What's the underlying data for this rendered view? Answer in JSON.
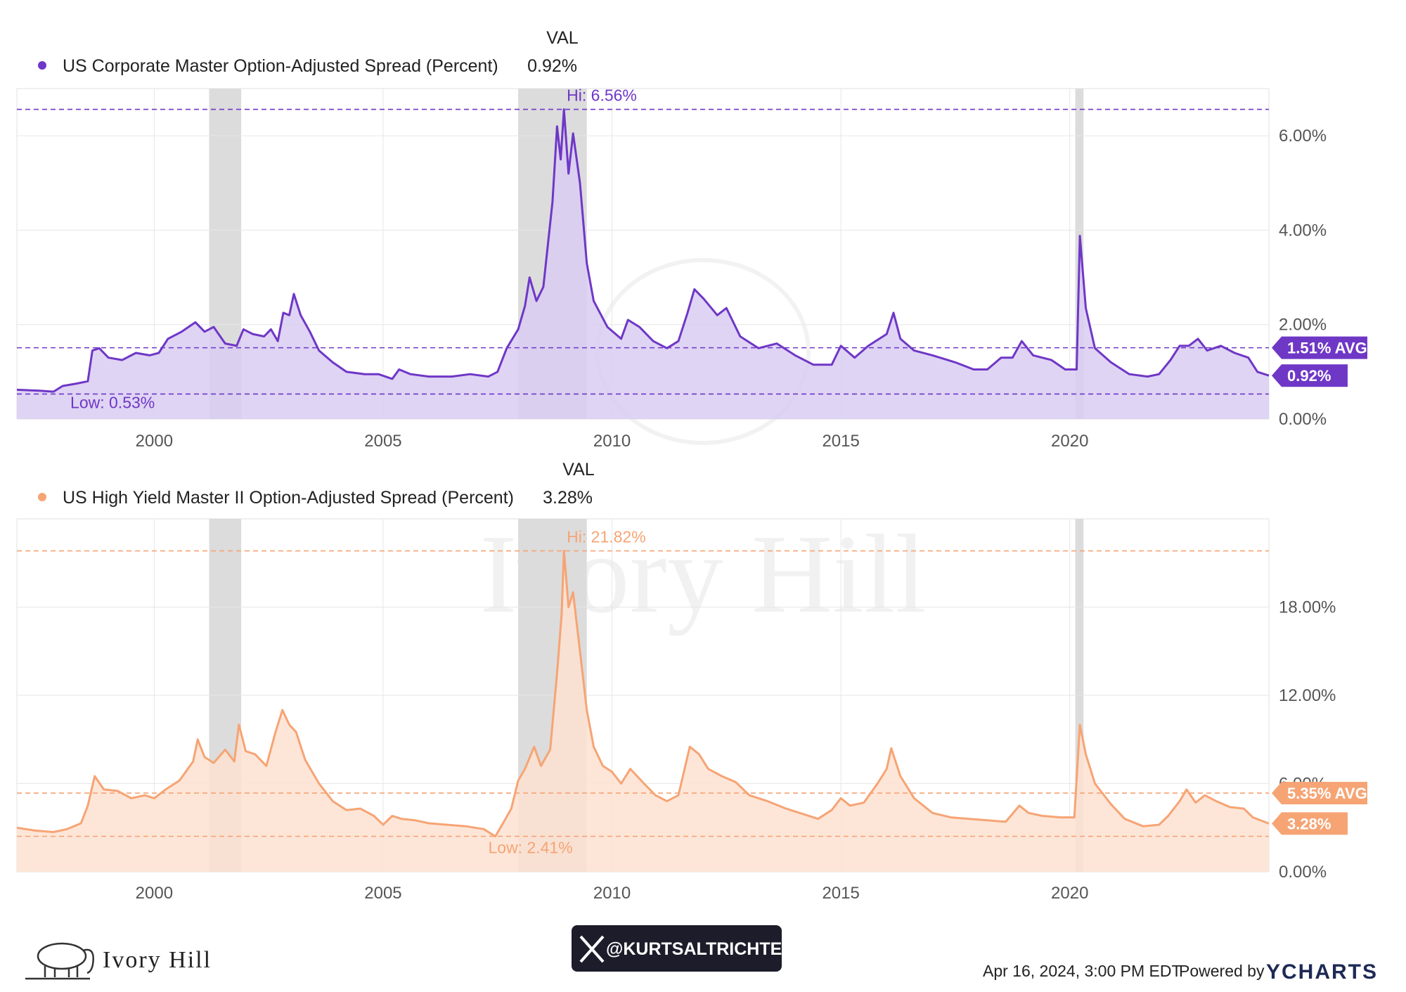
{
  "colors": {
    "ig": "#6f37c6",
    "ig_fill": "#d9ccf2",
    "hy": "#f6a474",
    "hy_fill": "#fde2d1",
    "recession": "#dcdcdc",
    "grid": "#e6e6e6",
    "badge_text": "#ffffff"
  },
  "legend_header": "VAL",
  "footer": {
    "brand": "Ivory Hill",
    "handle": "@KURTSALTRICHTER",
    "timestamp": "Apr 16, 2024, 3:00 PM EDT",
    "powered_by": "Powered by",
    "ycharts": "YCHARTS",
    "icons": [
      "elephant-logo-icon",
      "x-logo-icon"
    ]
  },
  "chart_data": [
    {
      "type": "area",
      "series": [
        {
          "name": "US Corporate Master Option-Adjusted Spread (Percent)",
          "value_label": "0.92%"
        }
      ],
      "xlim": [
        1997.0,
        2024.35
      ],
      "ylim": [
        0,
        7.0
      ],
      "x_ticks": [
        "2000",
        "2005",
        "2010",
        "2015",
        "2020"
      ],
      "x_tick_values": [
        2000,
        2005,
        2010,
        2015,
        2020
      ],
      "y_ticks": [
        "0.00%",
        "2.00%",
        "4.00%",
        "6.00%"
      ],
      "y_tick_values": [
        0,
        2,
        4,
        6
      ],
      "grid": true,
      "recessions": [
        [
          2001.2,
          2001.9
        ],
        [
          2007.95,
          2009.45
        ],
        [
          2020.12,
          2020.3
        ]
      ],
      "hi": {
        "label": "Hi: 6.56%",
        "value": 6.56,
        "x": 2008.95
      },
      "low": {
        "label": "Low: 0.53%",
        "value": 0.53,
        "x": 1997.4
      },
      "avg": {
        "label": "1.51% AVG",
        "value": 1.51
      },
      "last": {
        "label": "0.92%",
        "value": 0.92
      },
      "points": [
        [
          1997.0,
          0.62
        ],
        [
          1997.5,
          0.6
        ],
        [
          1997.8,
          0.58
        ],
        [
          1998.0,
          0.7
        ],
        [
          1998.3,
          0.75
        ],
        [
          1998.55,
          0.8
        ],
        [
          1998.65,
          1.45
        ],
        [
          1998.8,
          1.5
        ],
        [
          1999.0,
          1.3
        ],
        [
          1999.3,
          1.25
        ],
        [
          1999.6,
          1.4
        ],
        [
          1999.9,
          1.35
        ],
        [
          2000.1,
          1.4
        ],
        [
          2000.3,
          1.7
        ],
        [
          2000.6,
          1.85
        ],
        [
          2000.9,
          2.05
        ],
        [
          2001.1,
          1.85
        ],
        [
          2001.3,
          1.95
        ],
        [
          2001.55,
          1.6
        ],
        [
          2001.8,
          1.55
        ],
        [
          2001.95,
          1.9
        ],
        [
          2002.15,
          1.8
        ],
        [
          2002.4,
          1.75
        ],
        [
          2002.55,
          1.9
        ],
        [
          2002.7,
          1.65
        ],
        [
          2002.82,
          2.25
        ],
        [
          2002.95,
          2.2
        ],
        [
          2003.05,
          2.65
        ],
        [
          2003.2,
          2.2
        ],
        [
          2003.4,
          1.85
        ],
        [
          2003.6,
          1.45
        ],
        [
          2003.9,
          1.2
        ],
        [
          2004.2,
          1.0
        ],
        [
          2004.6,
          0.95
        ],
        [
          2004.9,
          0.95
        ],
        [
          2005.2,
          0.85
        ],
        [
          2005.35,
          1.05
        ],
        [
          2005.6,
          0.95
        ],
        [
          2006.0,
          0.9
        ],
        [
          2006.5,
          0.9
        ],
        [
          2006.9,
          0.95
        ],
        [
          2007.3,
          0.9
        ],
        [
          2007.5,
          1.0
        ],
        [
          2007.7,
          1.5
        ],
        [
          2007.95,
          1.9
        ],
        [
          2008.1,
          2.4
        ],
        [
          2008.2,
          3.0
        ],
        [
          2008.35,
          2.5
        ],
        [
          2008.5,
          2.8
        ],
        [
          2008.7,
          4.6
        ],
        [
          2008.8,
          6.2
        ],
        [
          2008.88,
          5.5
        ],
        [
          2008.95,
          6.56
        ],
        [
          2009.05,
          5.2
        ],
        [
          2009.15,
          6.05
        ],
        [
          2009.3,
          5.0
        ],
        [
          2009.45,
          3.3
        ],
        [
          2009.6,
          2.5
        ],
        [
          2009.9,
          1.95
        ],
        [
          2010.2,
          1.7
        ],
        [
          2010.35,
          2.1
        ],
        [
          2010.6,
          1.95
        ],
        [
          2010.9,
          1.65
        ],
        [
          2011.2,
          1.5
        ],
        [
          2011.45,
          1.65
        ],
        [
          2011.65,
          2.25
        ],
        [
          2011.8,
          2.75
        ],
        [
          2012.0,
          2.55
        ],
        [
          2012.3,
          2.2
        ],
        [
          2012.5,
          2.35
        ],
        [
          2012.8,
          1.75
        ],
        [
          2013.2,
          1.5
        ],
        [
          2013.6,
          1.6
        ],
        [
          2014.0,
          1.35
        ],
        [
          2014.4,
          1.15
        ],
        [
          2014.8,
          1.15
        ],
        [
          2015.0,
          1.55
        ],
        [
          2015.3,
          1.3
        ],
        [
          2015.6,
          1.55
        ],
        [
          2016.0,
          1.8
        ],
        [
          2016.15,
          2.25
        ],
        [
          2016.3,
          1.7
        ],
        [
          2016.6,
          1.45
        ],
        [
          2017.0,
          1.35
        ],
        [
          2017.5,
          1.2
        ],
        [
          2017.9,
          1.05
        ],
        [
          2018.2,
          1.05
        ],
        [
          2018.5,
          1.3
        ],
        [
          2018.75,
          1.3
        ],
        [
          2018.95,
          1.65
        ],
        [
          2019.2,
          1.35
        ],
        [
          2019.6,
          1.25
        ],
        [
          2019.9,
          1.05
        ],
        [
          2020.15,
          1.05
        ],
        [
          2020.22,
          3.88
        ],
        [
          2020.35,
          2.35
        ],
        [
          2020.55,
          1.5
        ],
        [
          2020.9,
          1.2
        ],
        [
          2021.3,
          0.95
        ],
        [
          2021.7,
          0.9
        ],
        [
          2021.95,
          0.95
        ],
        [
          2022.2,
          1.25
        ],
        [
          2022.4,
          1.55
        ],
        [
          2022.6,
          1.55
        ],
        [
          2022.8,
          1.7
        ],
        [
          2023.0,
          1.45
        ],
        [
          2023.3,
          1.55
        ],
        [
          2023.6,
          1.4
        ],
        [
          2023.9,
          1.3
        ],
        [
          2024.1,
          1.0
        ],
        [
          2024.35,
          0.92
        ]
      ]
    },
    {
      "type": "area",
      "series": [
        {
          "name": "US High Yield Master II Option-Adjusted Spread (Percent)",
          "value_label": "3.28%"
        }
      ],
      "xlim": [
        1997.0,
        2024.35
      ],
      "ylim": [
        0,
        24.0
      ],
      "x_ticks": [
        "2000",
        "2005",
        "2010",
        "2015",
        "2020"
      ],
      "x_tick_values": [
        2000,
        2005,
        2010,
        2015,
        2020
      ],
      "y_ticks": [
        "0.00%",
        "6.00%",
        "12.00%",
        "18.00%"
      ],
      "y_tick_values": [
        0,
        6,
        12,
        18
      ],
      "grid": true,
      "recessions": [
        [
          2001.2,
          2001.9
        ],
        [
          2007.95,
          2009.45
        ],
        [
          2020.12,
          2020.3
        ]
      ],
      "hi": {
        "label": "Hi: 21.82%",
        "value": 21.82,
        "x": 2008.95
      },
      "low": {
        "label": "Low: 2.41%",
        "value": 2.41,
        "x": 2007.45
      },
      "avg": {
        "label": "5.35% AVG",
        "value": 5.35
      },
      "last": {
        "label": "3.28%",
        "value": 3.28
      },
      "points": [
        [
          1997.0,
          3.0
        ],
        [
          1997.4,
          2.8
        ],
        [
          1997.8,
          2.7
        ],
        [
          1998.1,
          2.9
        ],
        [
          1998.4,
          3.3
        ],
        [
          1998.55,
          4.5
        ],
        [
          1998.7,
          6.5
        ],
        [
          1998.9,
          5.6
        ],
        [
          1999.2,
          5.5
        ],
        [
          1999.5,
          5.0
        ],
        [
          1999.8,
          5.2
        ],
        [
          2000.0,
          5.0
        ],
        [
          2000.25,
          5.6
        ],
        [
          2000.55,
          6.2
        ],
        [
          2000.85,
          7.5
        ],
        [
          2000.95,
          9.0
        ],
        [
          2001.1,
          7.8
        ],
        [
          2001.3,
          7.4
        ],
        [
          2001.55,
          8.3
        ],
        [
          2001.75,
          7.5
        ],
        [
          2001.85,
          10.0
        ],
        [
          2002.0,
          8.2
        ],
        [
          2002.2,
          8.0
        ],
        [
          2002.45,
          7.2
        ],
        [
          2002.65,
          9.5
        ],
        [
          2002.8,
          11.0
        ],
        [
          2002.95,
          10.0
        ],
        [
          2003.1,
          9.5
        ],
        [
          2003.3,
          7.6
        ],
        [
          2003.6,
          6.0
        ],
        [
          2003.9,
          4.8
        ],
        [
          2004.2,
          4.2
        ],
        [
          2004.5,
          4.3
        ],
        [
          2004.8,
          3.8
        ],
        [
          2005.0,
          3.2
        ],
        [
          2005.2,
          3.8
        ],
        [
          2005.4,
          3.6
        ],
        [
          2005.7,
          3.5
        ],
        [
          2006.0,
          3.3
        ],
        [
          2006.4,
          3.2
        ],
        [
          2006.8,
          3.1
        ],
        [
          2007.2,
          2.9
        ],
        [
          2007.45,
          2.41
        ],
        [
          2007.6,
          3.2
        ],
        [
          2007.8,
          4.3
        ],
        [
          2007.95,
          6.2
        ],
        [
          2008.1,
          7.0
        ],
        [
          2008.3,
          8.5
        ],
        [
          2008.45,
          7.2
        ],
        [
          2008.65,
          8.3
        ],
        [
          2008.8,
          13.5
        ],
        [
          2008.9,
          17.5
        ],
        [
          2008.95,
          21.82
        ],
        [
          2009.05,
          18.0
        ],
        [
          2009.15,
          19.0
        ],
        [
          2009.3,
          15.0
        ],
        [
          2009.45,
          11.0
        ],
        [
          2009.6,
          8.5
        ],
        [
          2009.8,
          7.2
        ],
        [
          2010.0,
          6.8
        ],
        [
          2010.2,
          6.0
        ],
        [
          2010.4,
          7.0
        ],
        [
          2010.7,
          6.0
        ],
        [
          2010.95,
          5.2
        ],
        [
          2011.2,
          4.8
        ],
        [
          2011.45,
          5.2
        ],
        [
          2011.7,
          8.5
        ],
        [
          2011.9,
          8.0
        ],
        [
          2012.1,
          7.0
        ],
        [
          2012.4,
          6.5
        ],
        [
          2012.7,
          6.1
        ],
        [
          2013.0,
          5.2
        ],
        [
          2013.4,
          4.8
        ],
        [
          2013.8,
          4.3
        ],
        [
          2014.1,
          4.0
        ],
        [
          2014.5,
          3.6
        ],
        [
          2014.8,
          4.2
        ],
        [
          2015.0,
          5.0
        ],
        [
          2015.2,
          4.5
        ],
        [
          2015.5,
          4.7
        ],
        [
          2015.8,
          6.0
        ],
        [
          2016.0,
          7.0
        ],
        [
          2016.1,
          8.4
        ],
        [
          2016.3,
          6.5
        ],
        [
          2016.6,
          5.0
        ],
        [
          2017.0,
          4.0
        ],
        [
          2017.4,
          3.7
        ],
        [
          2017.8,
          3.6
        ],
        [
          2018.2,
          3.5
        ],
        [
          2018.6,
          3.4
        ],
        [
          2018.9,
          4.5
        ],
        [
          2019.1,
          4.0
        ],
        [
          2019.4,
          3.8
        ],
        [
          2019.8,
          3.7
        ],
        [
          2020.1,
          3.7
        ],
        [
          2020.22,
          10.0
        ],
        [
          2020.35,
          8.0
        ],
        [
          2020.55,
          6.0
        ],
        [
          2020.9,
          4.6
        ],
        [
          2021.2,
          3.6
        ],
        [
          2021.6,
          3.1
        ],
        [
          2021.95,
          3.2
        ],
        [
          2022.15,
          3.8
        ],
        [
          2022.4,
          4.8
        ],
        [
          2022.55,
          5.6
        ],
        [
          2022.75,
          4.7
        ],
        [
          2022.95,
          5.2
        ],
        [
          2023.2,
          4.8
        ],
        [
          2023.5,
          4.4
        ],
        [
          2023.8,
          4.3
        ],
        [
          2024.0,
          3.7
        ],
        [
          2024.35,
          3.28
        ]
      ]
    }
  ]
}
